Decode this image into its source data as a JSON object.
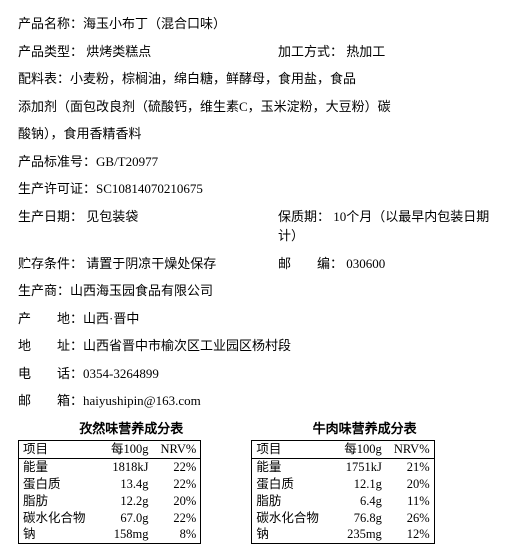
{
  "product": {
    "name_label": "产品名称：",
    "name_value": "海玉小布丁（混合口味）",
    "type_label": "产品类型：",
    "type_value": "烘烤类糕点",
    "process_label": "加工方式：",
    "process_value": "热加工",
    "ingredients_label": "配料表：",
    "ingredients_line1": "小麦粉，棕榈油，绵白糖，鲜酵母，食用盐，食品",
    "ingredients_line2": "添加剂（面包改良剂（硫酸钙，维生素C，玉米淀粉，大豆粉）碳",
    "ingredients_line3": "酸钠），食用香精香料",
    "std_label": "产品标准号：",
    "std_value": "GB/T20977",
    "license_label": "生产许可证：",
    "license_value": "SC10814070210675",
    "mfgdate_label": "生产日期：",
    "mfgdate_value": "见包装袋",
    "shelf_label": "保质期：",
    "shelf_value": "10个月（以最早内包装日期计）",
    "storage_label": "贮存条件：",
    "storage_value": "请置于阴凉干燥处保存",
    "zip_label": "邮　　编：",
    "zip_value": "030600",
    "producer_label": "生产商：",
    "producer_value": "山西海玉园食品有限公司",
    "origin_label": "产　　地：",
    "origin_value": "山西·晋中",
    "addr_label": "地　　址：",
    "addr_value": "山西省晋中市榆次区工业园区杨村段",
    "tel_label": "电　　话：",
    "tel_value": "0354-3264899",
    "email_label": "邮　　箱：",
    "email_value": "haiyushipin@163.com"
  },
  "nutri": {
    "col1": "项目",
    "col2": "每100g",
    "col3": "NRV%",
    "left": {
      "title": "孜然味营养成分表",
      "rows": [
        {
          "n": "能量",
          "v": "1818kJ",
          "p": "22%"
        },
        {
          "n": "蛋白质",
          "v": "13.4g",
          "p": "22%"
        },
        {
          "n": "脂肪",
          "v": "12.2g",
          "p": "20%"
        },
        {
          "n": "碳水化合物",
          "v": "67.0g",
          "p": "22%"
        },
        {
          "n": "钠",
          "v": "158mg",
          "p": "8%"
        }
      ]
    },
    "right": {
      "title": "牛肉味营养成分表",
      "rows": [
        {
          "n": "能量",
          "v": "1751kJ",
          "p": "21%"
        },
        {
          "n": "蛋白质",
          "v": "12.1g",
          "p": "20%"
        },
        {
          "n": "脂肪",
          "v": "6.4g",
          "p": "11%"
        },
        {
          "n": "碳水化合物",
          "v": "76.8g",
          "p": "26%"
        },
        {
          "n": "钠",
          "v": "235mg",
          "p": "12%"
        }
      ]
    }
  }
}
